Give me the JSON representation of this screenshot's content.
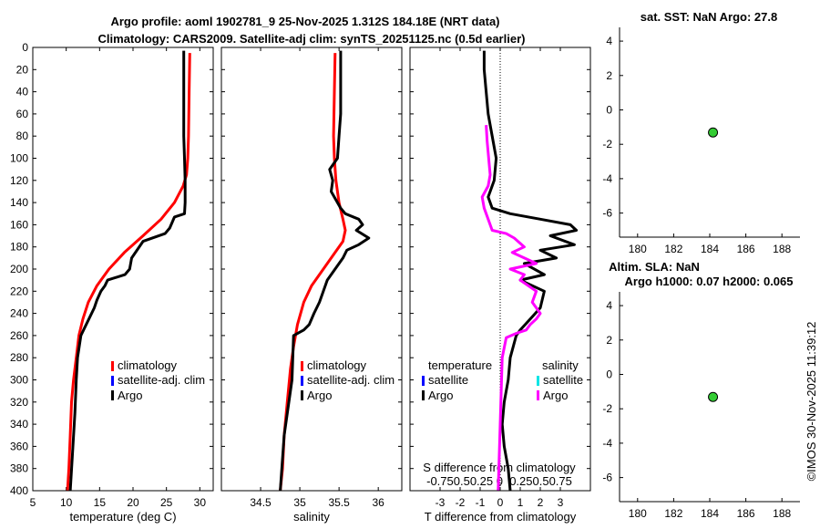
{
  "title_line1": "Argo profile: aoml 1902781_9 25-Nov-2025 1.312S 184.18E (NRT data)",
  "title_line2": "Climatology: CARS2009. Satellite-adj clim: synTS_20251125.nc (0.5d earlier)",
  "sst_title": "sat. SST: NaN Argo: 27.8",
  "sla_title1": "Altim. SLA: NaN",
  "sla_title2": "Argo h1000: 0.07 h2000: 0.065",
  "timestamp": "©IMOS 30-Nov-2025 11:39:12",
  "colors": {
    "climatology": "#ff0000",
    "satellite_adj": "#0000ff",
    "argo": "#000000",
    "sat_salinity": "#00e5e5",
    "argo_salinity": "#ff00ff",
    "marker": "#33cc33"
  },
  "chart_data": [
    {
      "type": "line",
      "name": "temperature-profile",
      "xlabel": "temperature (deg C)",
      "ylabel": "",
      "xlim": [
        5,
        32
      ],
      "ylim": [
        0,
        400
      ],
      "y_reversed": true,
      "xticks": [
        5,
        10,
        15,
        20,
        25,
        30
      ],
      "yticks": [
        0,
        20,
        40,
        60,
        80,
        100,
        120,
        140,
        160,
        180,
        200,
        220,
        240,
        260,
        280,
        300,
        320,
        340,
        360,
        380,
        400
      ],
      "legend": [
        "climatology",
        "satellite-adj. clim",
        "Argo"
      ],
      "series": [
        {
          "name": "climatology",
          "color": "#ff0000",
          "x": [
            28.5,
            28.4,
            28.3,
            28.2,
            28.0,
            27.5,
            26.2,
            24.2,
            21.5,
            18.7,
            16.4,
            14.6,
            13.3,
            12.5,
            11.9,
            11.5,
            11.1,
            10.8,
            10.6,
            10.4,
            10.2
          ],
          "y": [
            5,
            40,
            80,
            100,
            115,
            125,
            140,
            155,
            170,
            185,
            200,
            215,
            230,
            245,
            260,
            280,
            300,
            320,
            350,
            380,
            400
          ]
        },
        {
          "name": "Argo",
          "color": "#000000",
          "x": [
            27.6,
            27.6,
            27.6,
            27.6,
            27.6,
            27.7,
            27.8,
            27.8,
            27.7,
            26.2,
            25.5,
            24.8,
            21.5,
            19.8,
            19.5,
            18.8,
            16.2,
            15.8,
            15.2,
            14.6,
            14.2,
            13.4,
            12.6,
            12.2,
            11.7,
            11.5,
            11.3,
            10.9,
            10.6
          ],
          "y": [
            3,
            20,
            40,
            60,
            80,
            100,
            120,
            140,
            150,
            153,
            163,
            168,
            175,
            190,
            200,
            205,
            210,
            215,
            220,
            228,
            235,
            245,
            255,
            260,
            280,
            300,
            330,
            370,
            400
          ]
        }
      ]
    },
    {
      "type": "line",
      "name": "salinity-profile",
      "xlabel": "salinity",
      "ylabel": "",
      "xlim": [
        34.0,
        36.3
      ],
      "ylim": [
        0,
        400
      ],
      "y_reversed": true,
      "xticks": [
        34.5,
        35,
        35.5,
        36
      ],
      "legend": [
        "climatology",
        "satellite-adj. clim",
        "Argo"
      ],
      "series": [
        {
          "name": "climatology",
          "color": "#ff0000",
          "x": [
            35.45,
            35.44,
            35.43,
            35.44,
            35.46,
            35.5,
            35.55,
            35.58,
            35.55,
            35.45,
            35.3,
            35.15,
            35.05,
            34.97,
            34.92,
            34.88,
            34.84,
            34.8,
            34.78,
            34.75
          ],
          "y": [
            5,
            40,
            80,
            100,
            120,
            140,
            155,
            165,
            175,
            185,
            200,
            215,
            230,
            250,
            270,
            290,
            320,
            350,
            380,
            400
          ]
        },
        {
          "name": "Argo",
          "color": "#000000",
          "x": [
            35.52,
            35.52,
            35.52,
            35.52,
            35.5,
            35.48,
            35.38,
            35.42,
            35.4,
            35.48,
            35.52,
            35.58,
            35.75,
            35.8,
            35.72,
            35.88,
            35.75,
            35.6,
            35.55,
            35.45,
            35.35,
            35.3,
            35.25,
            35.18,
            35.12,
            35.05,
            34.92,
            34.9,
            34.8,
            34.75
          ],
          "y": [
            3,
            20,
            40,
            60,
            80,
            100,
            110,
            120,
            130,
            140,
            145,
            150,
            155,
            160,
            165,
            172,
            178,
            183,
            190,
            200,
            210,
            220,
            230,
            240,
            250,
            255,
            260,
            300,
            350,
            400
          ]
        }
      ]
    },
    {
      "type": "line",
      "name": "difference-profile",
      "xlabel": "T difference from climatology",
      "xlabel_top": "S difference from climatology",
      "xlim": [
        -4.5,
        4.5
      ],
      "ylim": [
        0,
        400
      ],
      "y_reversed": true,
      "xticks": [
        -3,
        -2,
        -1,
        0,
        1,
        2,
        3
      ],
      "top_ticks": "-0.750.50.25 0  0.250.50.75",
      "legend_t_header": "temperature",
      "legend_s_header": "salinity",
      "legend_t": [
        "satellite",
        "Argo"
      ],
      "legend_s": [
        "satellite",
        "Argo"
      ],
      "series": [
        {
          "name": "T Argo",
          "color": "#000000",
          "x": [
            -0.8,
            -0.8,
            -0.7,
            -0.6,
            -0.4,
            -0.2,
            -0.3,
            -0.6,
            -0.4,
            0.5,
            2.0,
            3.5,
            3.8,
            2.5,
            3.7,
            2.0,
            2.8,
            1.2,
            2.2,
            1.0,
            2.2,
            2.0,
            1.5,
            1.0,
            0.8,
            0.5,
            0.4,
            0.2,
            0.1,
            0.2,
            0.4,
            0.5
          ],
          "y": [
            3,
            20,
            40,
            60,
            80,
            100,
            120,
            135,
            145,
            150,
            155,
            160,
            165,
            170,
            178,
            183,
            190,
            195,
            205,
            210,
            220,
            235,
            245,
            255,
            260,
            280,
            300,
            320,
            340,
            360,
            380,
            400
          ]
        },
        {
          "name": "S Argo",
          "color": "#ff00ff",
          "x": [
            -0.7,
            -0.65,
            -0.6,
            -0.55,
            -0.5,
            -0.6,
            -0.9,
            -0.8,
            -0.6,
            -0.5,
            -0.4,
            0.3,
            0.7,
            1.2,
            0.6,
            1.8,
            0.5,
            1.2,
            1.0,
            1.8,
            1.6,
            2.0,
            1.8,
            1.5,
            1.3,
            0.8,
            0.3,
            0.1,
            0.05,
            0.0,
            -0.05,
            -0.1
          ],
          "y": [
            70,
            85,
            95,
            105,
            115,
            125,
            135,
            145,
            155,
            160,
            165,
            168,
            172,
            180,
            185,
            195,
            200,
            205,
            210,
            220,
            230,
            240,
            245,
            250,
            255,
            258,
            262,
            280,
            310,
            340,
            370,
            400
          ]
        }
      ]
    },
    {
      "type": "scatter",
      "name": "sst-panel",
      "xlim": [
        179,
        189
      ],
      "ylim": [
        -7.4,
        4.8
      ],
      "xticks": [
        180,
        182,
        184,
        186,
        188
      ],
      "yticks": [
        4,
        2,
        0,
        -2,
        -4,
        -6
      ],
      "points": [
        {
          "x": 184.18,
          "y": -1.312
        }
      ]
    },
    {
      "type": "scatter",
      "name": "sla-panel",
      "xlim": [
        179,
        189
      ],
      "ylim": [
        -7.4,
        4.8
      ],
      "xticks": [
        180,
        182,
        184,
        186,
        188
      ],
      "yticks": [
        4,
        2,
        0,
        -2,
        -4,
        -6
      ],
      "points": [
        {
          "x": 184.18,
          "y": -1.312
        }
      ]
    }
  ]
}
